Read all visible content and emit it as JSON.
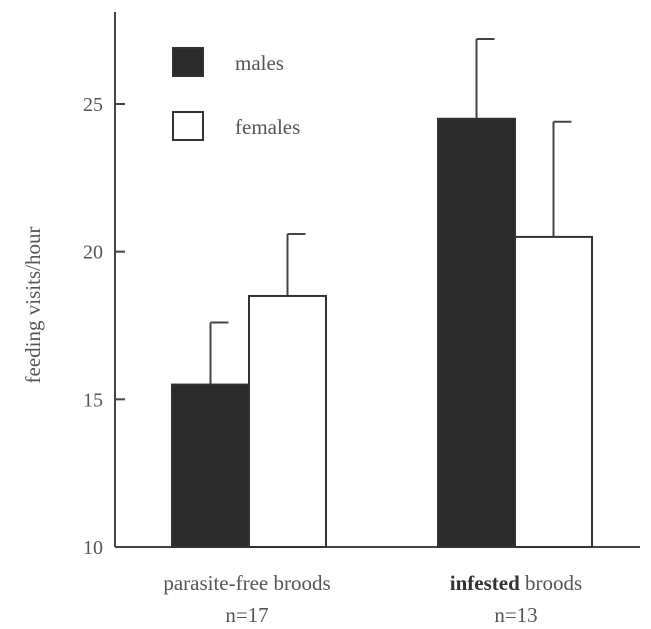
{
  "chart_data": {
    "type": "bar",
    "ylabel": "feeding visits/hour",
    "ylim": [
      10,
      28
    ],
    "yticks": [
      10,
      15,
      20,
      25
    ],
    "categories": [
      {
        "label_bold": "",
        "label": "parasite-free broods",
        "n_label": "n=17"
      },
      {
        "label_bold": "infested",
        "label": " broods",
        "n_label": "n=13"
      }
    ],
    "series": [
      {
        "name": "males",
        "color": "#2b2b2b",
        "values": [
          15.5,
          24.5
        ],
        "errors": [
          2.1,
          2.7
        ]
      },
      {
        "name": "females",
        "color": "#ffffff",
        "values": [
          18.5,
          20.5
        ],
        "errors": [
          2.1,
          3.9
        ]
      }
    ],
    "legend_position": "top-left",
    "grid": false
  }
}
